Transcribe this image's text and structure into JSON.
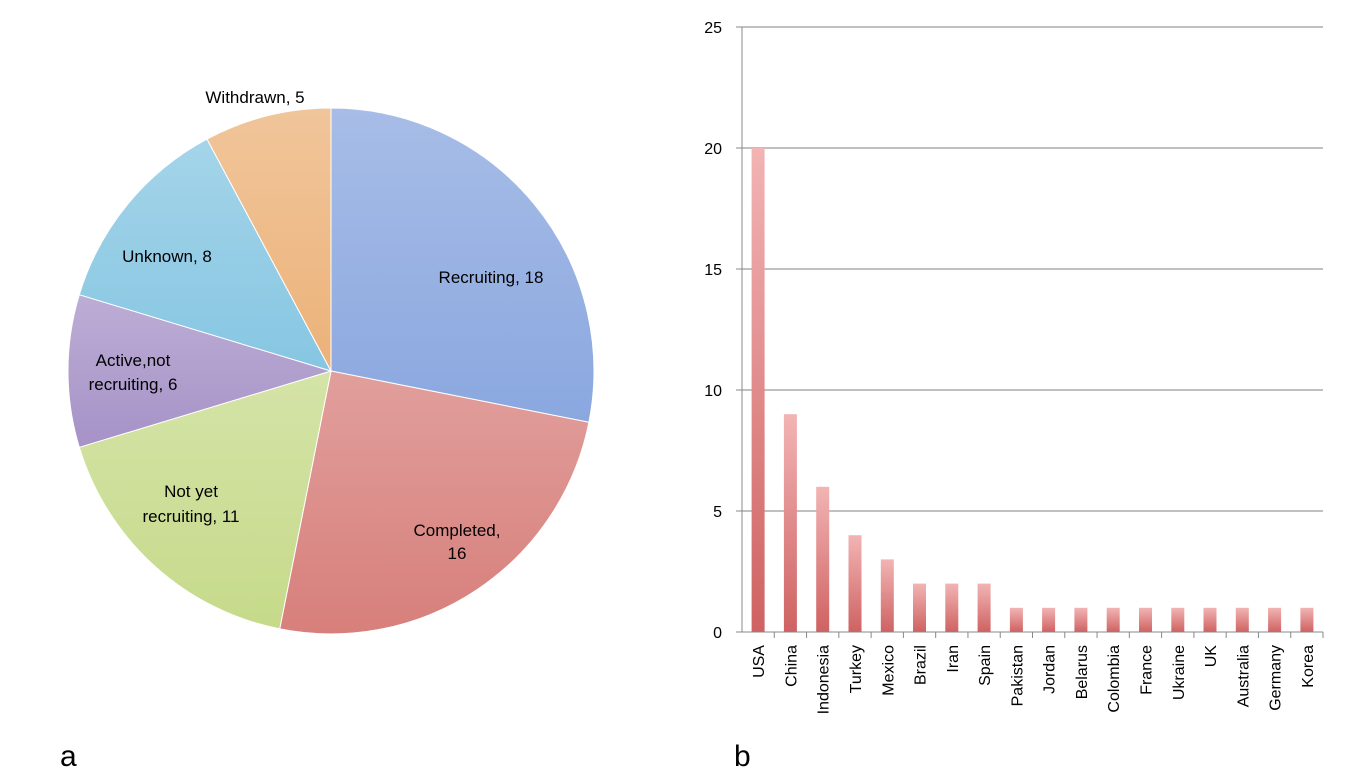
{
  "panels": {
    "a": "a",
    "b": "b"
  },
  "chart_data": [
    {
      "type": "pie",
      "panel": "a",
      "slices": [
        {
          "label": "Recruiting, 18",
          "value": 18,
          "color": "#8aa7df"
        },
        {
          "label": "Completed, 16",
          "value": 16,
          "color": "#d77f7b"
        },
        {
          "label": "Not yet recruiting, 11",
          "value": 11,
          "color": "#c6da8a"
        },
        {
          "label": "Active,not recruiting, 6",
          "value": 6,
          "color": "#a692c7"
        },
        {
          "label": "Unknown, 8",
          "value": 8,
          "color": "#86c6e2"
        },
        {
          "label": "Withdrawn, 5",
          "value": 5,
          "color": "#ecb279"
        }
      ]
    },
    {
      "type": "bar",
      "panel": "b",
      "categories": [
        "USA",
        "China",
        "Indonesia",
        "Turkey",
        "Mexico",
        "Brazil",
        "Iran",
        "Spain",
        "Pakistan",
        "Jordan",
        "Belarus",
        "Colombia",
        "France",
        "Ukraine",
        "UK",
        "Australia",
        "Germany",
        "Korea"
      ],
      "values": [
        20,
        9,
        6,
        4,
        3,
        2,
        2,
        2,
        1,
        1,
        1,
        1,
        1,
        1,
        1,
        1,
        1,
        1
      ],
      "ylim": [
        0,
        25
      ],
      "yticks": [
        0,
        5,
        10,
        15,
        20,
        25
      ],
      "grid": true,
      "bar_color": "#e39c9c"
    }
  ]
}
